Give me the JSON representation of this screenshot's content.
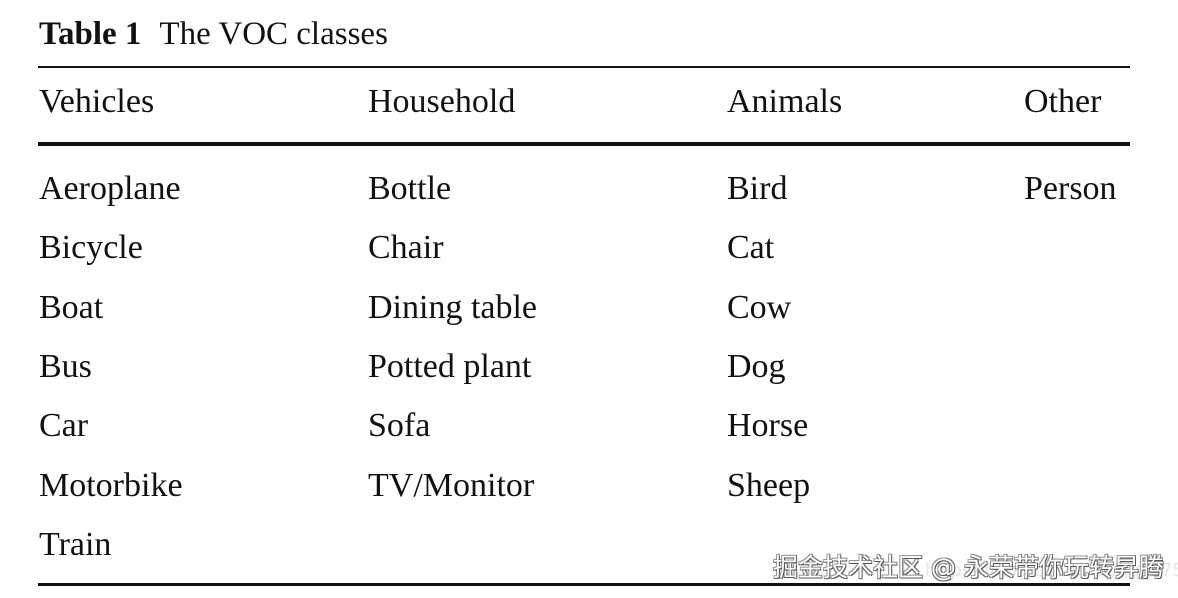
{
  "caption": {
    "label": "Table 1",
    "title": "The VOC classes"
  },
  "table": {
    "headers": [
      "Vehicles",
      "Household",
      "Animals",
      "Other"
    ],
    "columns": [
      [
        "Aeroplane",
        "Bicycle",
        "Boat",
        "Bus",
        "Car",
        "Motorbike",
        "Train"
      ],
      [
        "Bottle",
        "Chair",
        "Dining table",
        "Potted plant",
        "Sofa",
        "TV/Monitor"
      ],
      [
        "Bird",
        "Cat",
        "Cow",
        "Dog",
        "Horse",
        "Sheep"
      ],
      [
        "Person"
      ]
    ]
  },
  "watermark": {
    "text": "掘金技术社区 @ 永荣带你玩转昇腾",
    "url": "https://blog.csdn.net/qq_37541097"
  }
}
